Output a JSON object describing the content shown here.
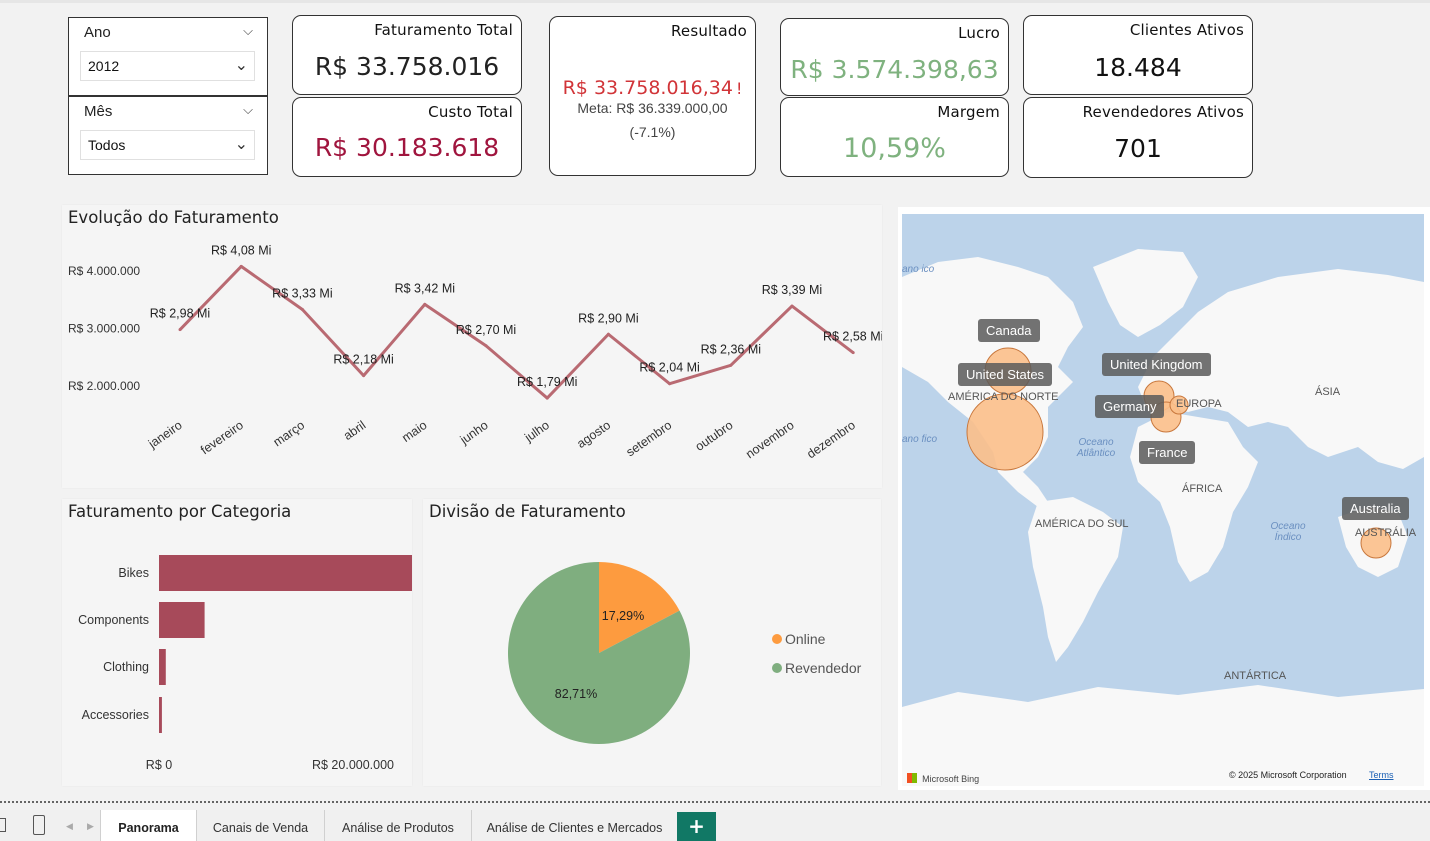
{
  "filters": {
    "ano": {
      "label": "Ano",
      "value": "2012"
    },
    "mes": {
      "label": "Mês",
      "value": "Todos"
    }
  },
  "kpis": {
    "faturamento_total": {
      "title": "Faturamento Total",
      "value": "R$ 33.758.016"
    },
    "custo_total": {
      "title": "Custo Total",
      "value": "R$ 30.183.618"
    },
    "resultado": {
      "title": "Resultado",
      "value": "R$ 33.758.016,34",
      "alert": "!",
      "meta": "Meta: R$ 36.339.000,00",
      "delta": "(-7.1%)"
    },
    "lucro": {
      "title": "Lucro",
      "value": "R$ 3.574.398,63"
    },
    "margem": {
      "title": "Margem",
      "value": "10,59%"
    },
    "clientes_ativos": {
      "title": "Clientes Ativos",
      "value": "18.484"
    },
    "revendedores_ativos": {
      "title": "Revendedores Ativos",
      "value": "701"
    }
  },
  "colors": {
    "negative": "#d13438",
    "cost": "#a0153e",
    "positive": "#7fb27f",
    "line": "#b96a72",
    "bar": "#a74a5a",
    "online": "#fd9b3f",
    "revendedor": "#7fae7f",
    "map_bubble": "#fbbf8a",
    "tab_add": "#117865"
  },
  "titles": {
    "evolucao": "Evolução do Faturamento",
    "categoria": "Faturamento por Categoria",
    "divisao": "Divisão de Faturamento"
  },
  "chart_data": [
    {
      "id": "evolucao",
      "type": "line",
      "title": "Evolução do Faturamento",
      "categories": [
        "janeiro",
        "fevereiro",
        "março",
        "abril",
        "maio",
        "junho",
        "julho",
        "agosto",
        "setembro",
        "outubro",
        "novembro",
        "dezembro"
      ],
      "values": [
        2.98,
        4.08,
        3.33,
        2.18,
        3.42,
        2.7,
        1.79,
        2.9,
        2.04,
        2.36,
        3.39,
        2.58
      ],
      "value_unit": "R$ Mi",
      "data_labels": [
        "R$ 2,98 Mi",
        "R$ 4,08 Mi",
        "R$ 3,33 Mi",
        "R$ 2,18 Mi",
        "R$ 3,42 Mi",
        "R$ 2,70 Mi",
        "R$ 1,79 Mi",
        "R$ 2,90 Mi",
        "R$ 2,04 Mi",
        "R$ 2,36 Mi",
        "R$ 3,39 Mi",
        "R$ 2,58 Mi"
      ],
      "y_ticks": [
        {
          "value": 4.0,
          "label": "R$ 4.000.000"
        },
        {
          "value": 3.0,
          "label": "R$ 3.000.000"
        },
        {
          "value": 2.0,
          "label": "R$ 2.000.000"
        }
      ],
      "grid": false
    },
    {
      "id": "categoria",
      "type": "bar",
      "orientation": "horizontal",
      "title": "Faturamento por Categoria",
      "categories": [
        "Bikes",
        "Components",
        "Clothing",
        "Accessories"
      ],
      "values": [
        28300000,
        4700000,
        700000,
        300000
      ],
      "x_ticks": [
        {
          "value": 0,
          "label": "R$ 0"
        },
        {
          "value": 20000000,
          "label": "R$ 20.000.000"
        }
      ],
      "grid": false
    },
    {
      "id": "divisao",
      "type": "pie",
      "title": "Divisão de Faturamento",
      "slices": [
        {
          "name": "Online",
          "value": 17.29,
          "label": "17,29%"
        },
        {
          "name": "Revendedor",
          "value": 82.71,
          "label": "82,71%"
        }
      ],
      "legend": "right"
    }
  ],
  "map": {
    "labels": [
      "Canada",
      "United States",
      "United Kingdom",
      "Germany",
      "France",
      "Australia"
    ],
    "regions": [
      "AMÉRICA DO NORTE",
      "EUROPA",
      "ÁSIA",
      "ÁFRICA",
      "AMÉRICA DO SUL",
      "AUSTRÁLIA",
      "ANTÁRTICA"
    ],
    "oceans": [
      "Oceano Atlântico",
      "Oceano Índico"
    ],
    "edge_ocean_top": "ano ico",
    "edge_ocean_mid": "ano fico",
    "brand": "Microsoft Bing",
    "copyright": "© 2025 Microsoft Corporation",
    "terms": "Terms"
  },
  "tabs": [
    "Panorama",
    "Canais de Venda",
    "Análise de Produtos",
    "Análise de Clientes e Mercados"
  ],
  "tab_add": "+"
}
